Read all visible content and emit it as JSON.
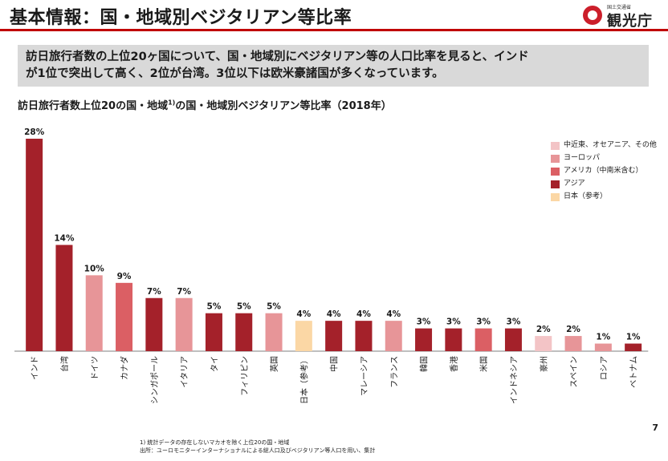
{
  "title": "基本情報：国・地域別ベジタリアン等比率",
  "logo": {
    "small": "国土交通省",
    "main": "観光庁"
  },
  "summary": [
    "訪日旅行者数の上位20ヶ国について、国・地域別にベジタリアン等の人口比率を見ると、インド",
    "が1位で突出して高く、2位が台湾。3位以下は欧米豪諸国が多くなっています。"
  ],
  "chart_title": {
    "main": "訪日旅行者数上位20の国・地域",
    "sup": "1)",
    "rest": "の国・地域別ベジタリアン等比率（2018年）"
  },
  "colors": {
    "middle_east_oceania": "#f3c4c6",
    "europe": "#e79598",
    "americas": "#db5f64",
    "asia": "#a4212a",
    "japan": "#fbd7a5",
    "title_rule": "#c00000"
  },
  "legend": [
    {
      "key": "middle_east_oceania",
      "label": "中近東、オセアニア、その他"
    },
    {
      "key": "europe",
      "label": "ヨーロッパ"
    },
    {
      "key": "americas",
      "label": "アメリカ（中南米含む）"
    },
    {
      "key": "asia",
      "label": "アジア"
    },
    {
      "key": "japan",
      "label": "日本（参考）"
    }
  ],
  "chart_data": {
    "type": "bar",
    "title": "訪日旅行者数上位20の国・地域の国・地域別ベジタリアン等比率（2018年）",
    "unit": "%",
    "ylim": [
      0,
      28
    ],
    "grid": false,
    "legend_position": "top-right",
    "categories": [
      "インド",
      "台湾",
      "ドイツ",
      "カナダ",
      "シンガポール",
      "イタリア",
      "タイ",
      "フィリピン",
      "英国",
      "日本（参考）",
      "中国",
      "マレーシア",
      "フランス",
      "韓国",
      "香港",
      "米国",
      "インドネシア",
      "豪州",
      "スペイン",
      "ロシア",
      "ベトナム"
    ],
    "values": [
      28,
      14,
      10,
      9,
      7,
      7,
      5,
      5,
      5,
      4,
      4,
      4,
      4,
      3,
      3,
      3,
      3,
      2,
      2,
      1,
      1
    ],
    "labels": [
      "28%",
      "14%",
      "10%",
      "9%",
      "7%",
      "7%",
      "5%",
      "5%",
      "5%",
      "4%",
      "4%",
      "4%",
      "4%",
      "3%",
      "3%",
      "3%",
      "3%",
      "2%",
      "2%",
      "1%",
      "1%"
    ],
    "regions": [
      "asia",
      "asia",
      "europe",
      "americas",
      "asia",
      "europe",
      "asia",
      "asia",
      "europe",
      "japan",
      "asia",
      "asia",
      "europe",
      "asia",
      "asia",
      "americas",
      "asia",
      "middle_east_oceania",
      "europe",
      "europe",
      "asia"
    ]
  },
  "page_number": "7",
  "footnotes": [
    "1) 統計データの存在しないマカオを除く上位20の国・地域",
    "出所：ユーロモニターインターナショナルによる総人口及びベジタリアン等人口を用い、集計"
  ]
}
